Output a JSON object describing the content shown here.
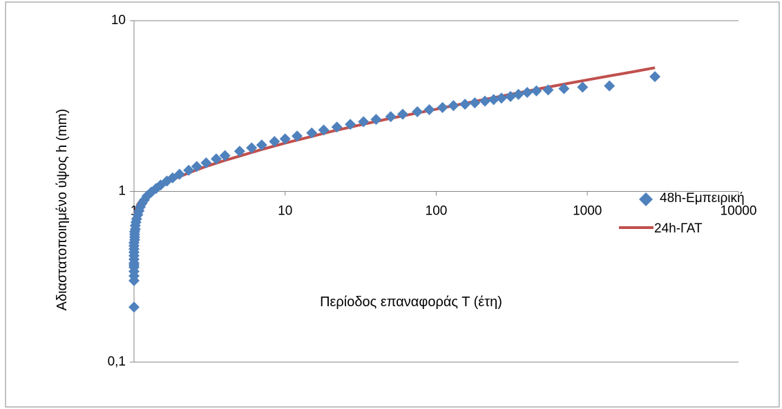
{
  "chart_data": {
    "type": "scatter",
    "title": "",
    "xlabel": "Περίοδος επαναφοράς Τ (έτη)",
    "ylabel": "Αδιαστατοποιημένο ύψος  h (mm)",
    "x_scale": "log",
    "y_scale": "log",
    "xlim": [
      1,
      10000
    ],
    "ylim": [
      0.1,
      10
    ],
    "x_ticks": [
      "1",
      "10",
      "100",
      "1000",
      "10000"
    ],
    "y_ticks": [
      "0,1",
      "1",
      "10"
    ],
    "grid": "horizontal",
    "legend_position": "right",
    "colors": {
      "empirical": "#4f81bd",
      "gat": "#c0504d",
      "grid": "#868686"
    },
    "series": [
      {
        "name": "48h-Εμπειρική",
        "marker": "diamond",
        "points": [
          [
            1.0,
            0.21
          ],
          [
            1.0,
            0.3
          ],
          [
            1.0,
            0.32
          ],
          [
            1.0,
            0.34
          ],
          [
            1.0,
            0.36
          ],
          [
            1.0,
            0.37
          ],
          [
            1.0,
            0.38
          ],
          [
            1.0,
            0.4
          ],
          [
            1.0,
            0.42
          ],
          [
            1.0,
            0.44
          ],
          [
            1.0,
            0.46
          ],
          [
            1.0,
            0.48
          ],
          [
            1.0,
            0.5
          ],
          [
            1.01,
            0.52
          ],
          [
            1.01,
            0.54
          ],
          [
            1.01,
            0.56
          ],
          [
            1.01,
            0.58
          ],
          [
            1.02,
            0.6
          ],
          [
            1.02,
            0.63
          ],
          [
            1.03,
            0.66
          ],
          [
            1.04,
            0.69
          ],
          [
            1.06,
            0.73
          ],
          [
            1.08,
            0.77
          ],
          [
            1.1,
            0.81
          ],
          [
            1.13,
            0.85
          ],
          [
            1.17,
            0.89
          ],
          [
            1.22,
            0.94
          ],
          [
            1.3,
            0.99
          ],
          [
            1.4,
            1.04
          ],
          [
            1.5,
            1.09
          ],
          [
            1.65,
            1.15
          ],
          [
            1.8,
            1.2
          ],
          [
            2.0,
            1.26
          ],
          [
            2.3,
            1.33
          ],
          [
            2.6,
            1.4
          ],
          [
            3.0,
            1.47
          ],
          [
            3.5,
            1.55
          ],
          [
            4.0,
            1.62
          ],
          [
            5.0,
            1.72
          ],
          [
            6.0,
            1.8
          ],
          [
            7.0,
            1.87
          ],
          [
            8.5,
            1.96
          ],
          [
            10,
            2.03
          ],
          [
            12,
            2.11
          ],
          [
            15,
            2.2
          ],
          [
            18,
            2.29
          ],
          [
            22,
            2.38
          ],
          [
            27,
            2.47
          ],
          [
            33,
            2.56
          ],
          [
            40,
            2.64
          ],
          [
            50,
            2.74
          ],
          [
            60,
            2.83
          ],
          [
            75,
            2.93
          ],
          [
            90,
            3.01
          ],
          [
            110,
            3.1
          ],
          [
            130,
            3.18
          ],
          [
            155,
            3.24
          ],
          [
            180,
            3.3
          ],
          [
            210,
            3.38
          ],
          [
            240,
            3.45
          ],
          [
            270,
            3.52
          ],
          [
            310,
            3.6
          ],
          [
            350,
            3.7
          ],
          [
            400,
            3.8
          ],
          [
            460,
            3.88
          ],
          [
            550,
            3.93
          ],
          [
            700,
            4.0
          ],
          [
            930,
            4.08
          ],
          [
            1400,
            4.15
          ],
          [
            2800,
            4.7
          ]
        ]
      },
      {
        "name": "24h-ΓΑΤ",
        "marker": "line",
        "points": [
          [
            1.0,
            0.6
          ],
          [
            1.005,
            0.68
          ],
          [
            1.01,
            0.72
          ],
          [
            1.03,
            0.78
          ],
          [
            1.06,
            0.84
          ],
          [
            1.1,
            0.88
          ],
          [
            1.2,
            0.95
          ],
          [
            1.35,
            1.02
          ],
          [
            1.5,
            1.08
          ],
          [
            1.8,
            1.17
          ],
          [
            2.0,
            1.22
          ],
          [
            2.5,
            1.32
          ],
          [
            3.0,
            1.4
          ],
          [
            4.0,
            1.52
          ],
          [
            5.0,
            1.61
          ],
          [
            7.0,
            1.76
          ],
          [
            10,
            1.92
          ],
          [
            15,
            2.1
          ],
          [
            20,
            2.24
          ],
          [
            30,
            2.43
          ],
          [
            50,
            2.68
          ],
          [
            75,
            2.88
          ],
          [
            100,
            3.03
          ],
          [
            150,
            3.26
          ],
          [
            200,
            3.43
          ],
          [
            300,
            3.68
          ],
          [
            500,
            4.02
          ],
          [
            700,
            4.25
          ],
          [
            1000,
            4.5
          ],
          [
            1500,
            4.8
          ],
          [
            2000,
            5.02
          ],
          [
            2800,
            5.3
          ]
        ]
      }
    ]
  }
}
